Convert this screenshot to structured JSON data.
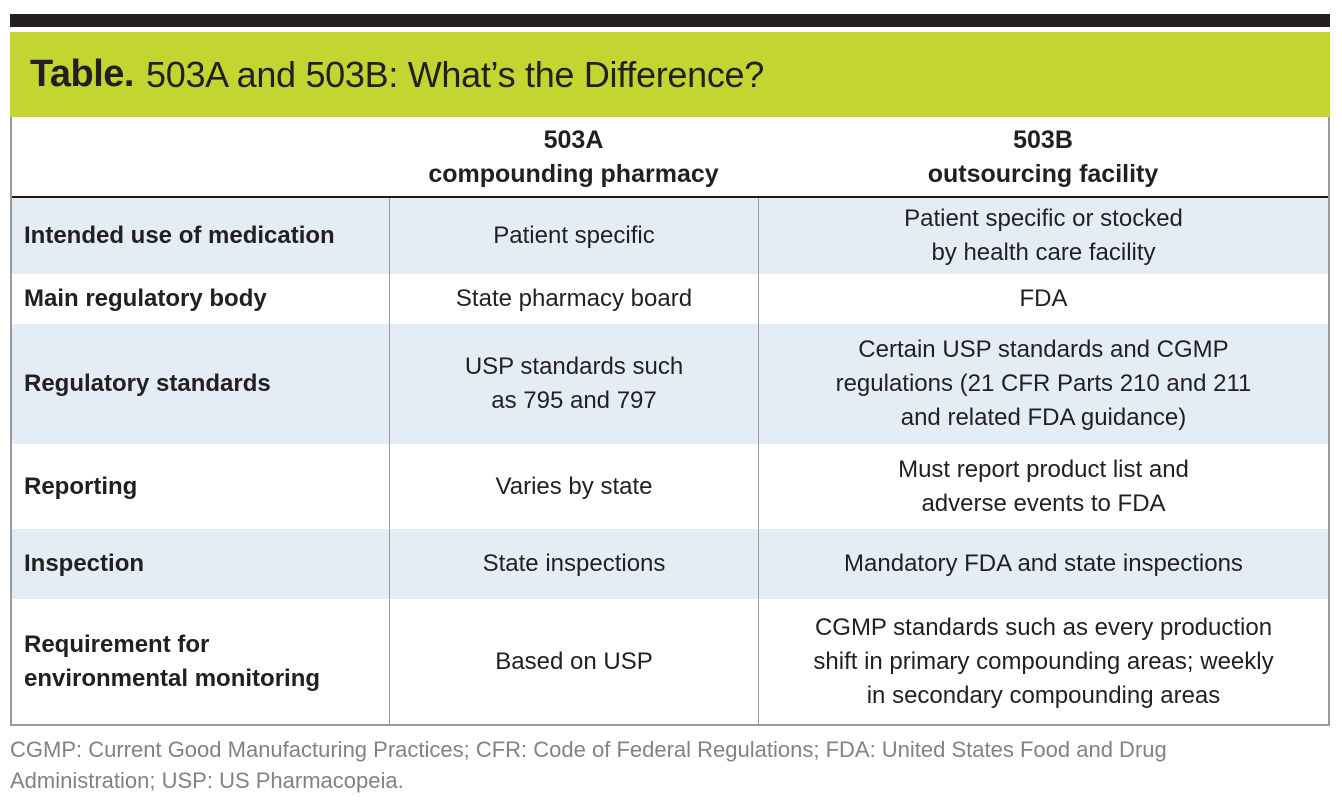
{
  "top_bar": {
    "color": "#231f20"
  },
  "title_bar": {
    "background": "#c3d531",
    "prefix": "Table.",
    "text": "503A and 503B: What’s the Difference?"
  },
  "table": {
    "columns": [
      {
        "label": ""
      },
      {
        "label": "503A\ncompounding pharmacy"
      },
      {
        "label": "503B\noutsourcing facility"
      }
    ],
    "rows": [
      {
        "label": "Intended use of medication",
        "a": "Patient specific",
        "b": "Patient specific or stocked\nby health care facility"
      },
      {
        "label": "Main regulatory body",
        "a": "State pharmacy board",
        "b": "FDA"
      },
      {
        "label": "Regulatory standards",
        "a": "USP standards such\nas 795 and 797",
        "b": "Certain USP standards and CGMP\nregulations (21 CFR Parts 210 and 211\nand related FDA guidance)"
      },
      {
        "label": "Reporting",
        "a": "Varies by state",
        "b": "Must report product list and\nadverse events to FDA"
      },
      {
        "label": "Inspection",
        "a": "State inspections",
        "b": "Mandatory FDA and state inspections"
      },
      {
        "label": "Requirement for\nenvironmental monitoring",
        "a": "Based on USP",
        "b": "CGMP standards such as every production\nshift in primary compounding areas; weekly\nin secondary compounding areas"
      }
    ],
    "row_colors": {
      "shaded": "#e4edf6",
      "plain": "#ffffff"
    }
  },
  "footnote": {
    "text": "CGMP: Current Good Manufacturing Practices; CFR: Code of Federal Regulations; FDA: United States Food and Drug\nAdministration; USP: US Pharmacopeia.",
    "color": "#808285"
  }
}
